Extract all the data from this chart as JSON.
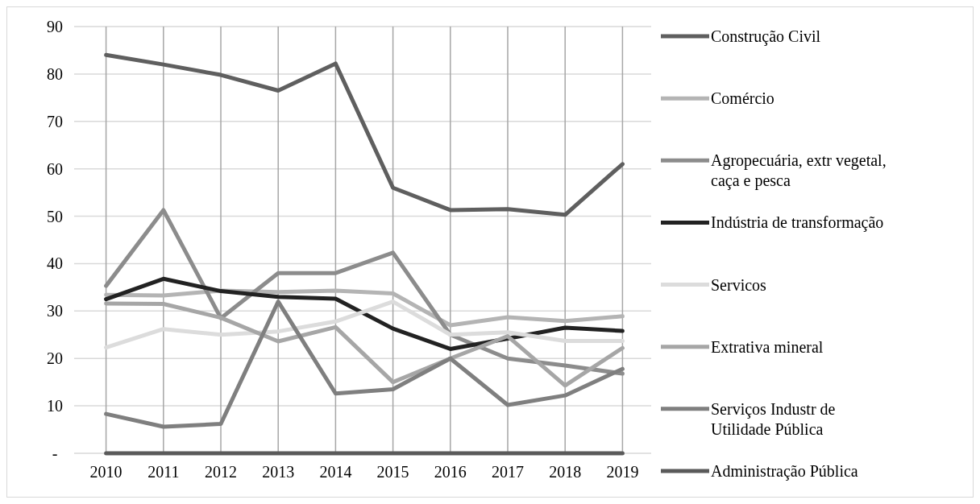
{
  "chart_data": {
    "type": "line",
    "categories": [
      "2010",
      "2011",
      "2012",
      "2013",
      "2014",
      "2015",
      "2016",
      "2017",
      "2018",
      "2019"
    ],
    "ylim": [
      0,
      90
    ],
    "yticks": [
      {
        "value": 0,
        "label": "-"
      },
      10,
      20,
      30,
      40,
      50,
      60,
      70,
      80,
      90
    ],
    "grid": true,
    "legend": "right",
    "marker": "none",
    "series": [
      {
        "name": "Construção Civil",
        "color": "#5f5f5f",
        "values": [
          84,
          82,
          79.8,
          76.5,
          82.2,
          56,
          51.3,
          51.5,
          50.3,
          61
        ]
      },
      {
        "name": "Comércio",
        "color": "#b4b4b4",
        "values": [
          33.4,
          33.3,
          34.3,
          34,
          34.3,
          33.7,
          27,
          28.7,
          27.9,
          28.9
        ]
      },
      {
        "name": "Agropecuária, extr vegetal, caça e pesca",
        "color": "#8c8c8c",
        "values": [
          35.3,
          51.3,
          28.5,
          38,
          38,
          42.3,
          25,
          20,
          18.5,
          16.8
        ]
      },
      {
        "name": "Indústria de transformação",
        "color": "#222222",
        "values": [
          32.5,
          36.8,
          34.2,
          33,
          32.6,
          26.3,
          22,
          24.2,
          26.5,
          25.8
        ]
      },
      {
        "name": "Servicos",
        "color": "#dcdcdc",
        "values": [
          22.3,
          26.2,
          25,
          25.7,
          27.8,
          32,
          25,
          25.5,
          23.7,
          23.7
        ]
      },
      {
        "name": "Extrativa mineral",
        "color": "#a6a6a6",
        "values": [
          31.6,
          31.5,
          28.6,
          23.6,
          26.6,
          15,
          20,
          24.7,
          14.3,
          22.2
        ]
      },
      {
        "name": "Serviços Industr de Utilidade Pública",
        "color": "#7f7f7f",
        "values": [
          8.3,
          5.6,
          6.2,
          32,
          12.6,
          13.5,
          20,
          10.2,
          12.2,
          17.8
        ]
      },
      {
        "name": "Administração Pública",
        "color": "#5a5a5a",
        "values": [
          0,
          0,
          0,
          0,
          0,
          0,
          0,
          0,
          0,
          0
        ]
      }
    ]
  }
}
